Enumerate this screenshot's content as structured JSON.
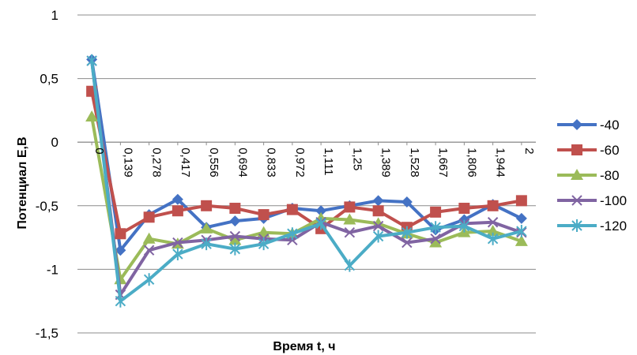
{
  "chart_data": {
    "type": "line",
    "title": "",
    "xlabel": "Время t, ч",
    "ylabel": "Потенциал Е,В",
    "ylim": [
      -1.5,
      1
    ],
    "y_ticks": [
      "1",
      "0,5",
      "0",
      "-0,5",
      "-1",
      "-1,5"
    ],
    "y_tick_values": [
      1,
      0.5,
      0,
      -0.5,
      -1,
      -1.5
    ],
    "categories": [
      "0",
      "0,139",
      "0,278",
      "0,417",
      "0,556",
      "0,694",
      "0,833",
      "0,972",
      "1,111",
      "1,25",
      "1,389",
      "1,528",
      "1,667",
      "1,806",
      "1,944",
      "2"
    ],
    "grid": true,
    "legend_position": "right",
    "series": [
      {
        "name": "-40",
        "color": "#4472C4",
        "marker": "diamond",
        "values": [
          0.65,
          -0.85,
          -0.57,
          -0.45,
          -0.67,
          -0.62,
          -0.6,
          -0.52,
          -0.54,
          -0.5,
          -0.46,
          -0.47,
          -0.69,
          -0.61,
          -0.49,
          -0.6
        ]
      },
      {
        "name": "-60",
        "color": "#C0504D",
        "marker": "square",
        "values": [
          0.4,
          -0.72,
          -0.59,
          -0.54,
          -0.5,
          -0.52,
          -0.57,
          -0.53,
          -0.68,
          -0.51,
          -0.54,
          -0.67,
          -0.55,
          -0.52,
          -0.5,
          -0.46
        ]
      },
      {
        "name": "-80",
        "color": "#9BBB59",
        "marker": "triangle",
        "values": [
          0.2,
          -1.08,
          -0.76,
          -0.8,
          -0.68,
          -0.77,
          -0.71,
          -0.72,
          -0.6,
          -0.61,
          -0.64,
          -0.72,
          -0.79,
          -0.71,
          -0.7,
          -0.78
        ]
      },
      {
        "name": "-100",
        "color": "#8064A2",
        "marker": "x",
        "values": [
          0.64,
          -1.2,
          -0.85,
          -0.79,
          -0.77,
          -0.74,
          -0.76,
          -0.77,
          -0.63,
          -0.71,
          -0.66,
          -0.79,
          -0.76,
          -0.64,
          -0.63,
          -0.71
        ]
      },
      {
        "name": "-120",
        "color": "#4BACC6",
        "marker": "star",
        "values": [
          0.64,
          -1.25,
          -1.08,
          -0.88,
          -0.8,
          -0.84,
          -0.8,
          -0.72,
          -0.64,
          -0.97,
          -0.74,
          -0.71,
          -0.67,
          -0.66,
          -0.76,
          -0.7
        ]
      }
    ]
  }
}
